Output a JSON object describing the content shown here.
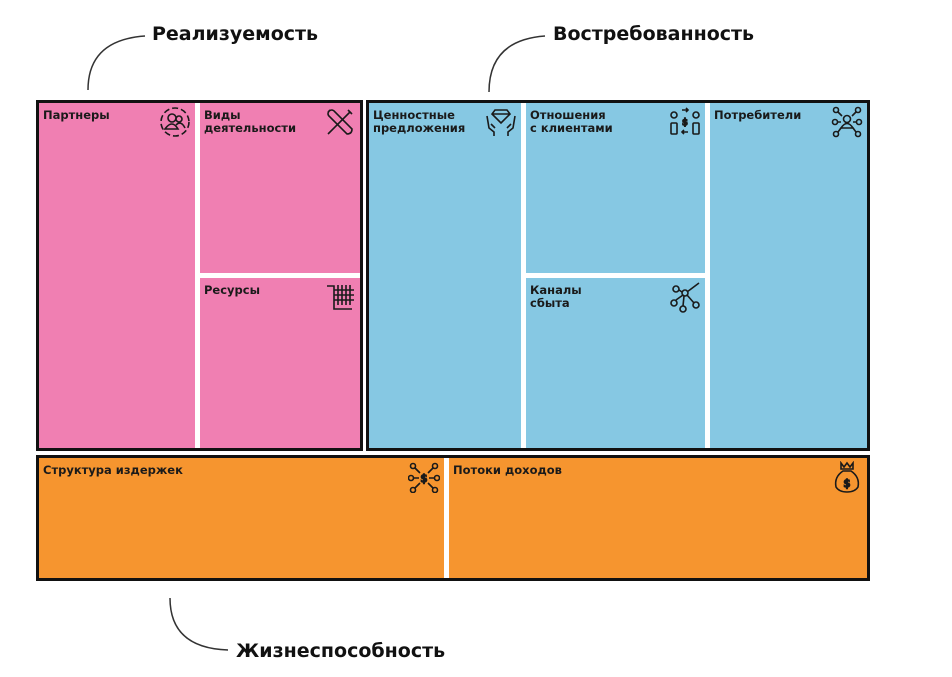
{
  "headings": {
    "feasibility": "Реализуемость",
    "desirability": "Востребованность",
    "viability": "Жизнеспособность"
  },
  "blocks": {
    "partners": {
      "label": "Партнеры",
      "icon": "partners-icon"
    },
    "activities": {
      "label": "Виды\nдеятельности",
      "icon": "tools-icon"
    },
    "resources": {
      "label": "Ресурсы",
      "icon": "resources-icon"
    },
    "value": {
      "label": "Ценностные\nпредложения",
      "icon": "diamond-hands-icon"
    },
    "relationships": {
      "label": "Отношения\nс клиентами",
      "icon": "relationships-icon"
    },
    "channels": {
      "label": "Каналы\nсбыта",
      "icon": "network-icon"
    },
    "segments": {
      "label": "Потребители",
      "icon": "customers-icon"
    },
    "costs": {
      "label": "Структура издержек",
      "icon": "cost-icon"
    },
    "revenue": {
      "label": "Потоки доходов",
      "icon": "money-bag-icon"
    }
  },
  "colors": {
    "feasibility": "#f07fb2",
    "desirability": "#86c8e3",
    "viability": "#f6952f"
  }
}
